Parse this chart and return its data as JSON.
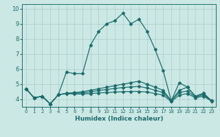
{
  "title": "",
  "xlabel": "Humidex (Indice chaleur)",
  "xlim": [
    -0.5,
    23.5
  ],
  "ylim": [
    3.5,
    10.3
  ],
  "yticks": [
    4,
    5,
    6,
    7,
    8,
    9,
    10
  ],
  "xticks": [
    0,
    1,
    2,
    3,
    4,
    5,
    6,
    7,
    8,
    9,
    10,
    11,
    12,
    13,
    14,
    15,
    16,
    17,
    18,
    19,
    20,
    21,
    22,
    23
  ],
  "bg_color": "#cce8e4",
  "grid_color": "#aacccc",
  "line_color": "#1a6b6b",
  "series": [
    [
      4.7,
      4.1,
      4.2,
      3.7,
      4.3,
      5.8,
      5.7,
      5.7,
      7.6,
      8.5,
      9.0,
      9.2,
      9.7,
      9.0,
      9.3,
      8.5,
      7.3,
      5.9,
      3.9,
      5.1,
      4.8,
      4.2,
      4.4,
      3.9
    ],
    [
      4.7,
      4.1,
      4.2,
      3.7,
      4.3,
      4.4,
      4.45,
      4.5,
      4.6,
      4.7,
      4.8,
      4.9,
      5.0,
      5.1,
      5.2,
      5.0,
      4.8,
      4.6,
      3.9,
      4.6,
      4.8,
      4.2,
      4.4,
      3.9
    ],
    [
      4.7,
      4.1,
      4.2,
      3.7,
      4.3,
      4.4,
      4.4,
      4.42,
      4.5,
      4.58,
      4.65,
      4.72,
      4.78,
      4.82,
      4.85,
      4.75,
      4.6,
      4.45,
      3.9,
      4.45,
      4.55,
      4.15,
      4.3,
      3.9
    ],
    [
      4.7,
      4.1,
      4.2,
      3.7,
      4.3,
      4.38,
      4.35,
      4.35,
      4.38,
      4.42,
      4.45,
      4.48,
      4.5,
      4.52,
      4.52,
      4.48,
      4.38,
      4.28,
      3.85,
      4.28,
      4.38,
      4.1,
      4.2,
      3.88
    ]
  ],
  "marker": "D",
  "marker_size": 2.5,
  "linewidth": 0.9
}
